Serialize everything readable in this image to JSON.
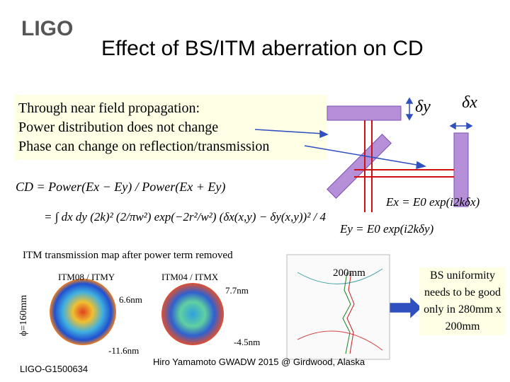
{
  "header": {
    "logo": "LIGO",
    "title": "Effect of BS/ITM aberration on CD"
  },
  "note": {
    "lines": [
      "Through near field propagation:",
      "Power distribution does not change",
      "Phase can change on reflection/transmission"
    ]
  },
  "diagram": {
    "delta_y": "δy",
    "delta_x": "δx",
    "ex": "Ex = E0 exp(i2kδx)",
    "ey": "Ey = E0 exp(i2kδy)"
  },
  "equation": {
    "line1": "CD = Power(Ex − Ey) / Power(Ex + Ey)",
    "line2": "= ∫ dx dy (2k)² (2/πw²) exp(−2r²/w²) (δx(x,y) − δy(x,y))² / 4"
  },
  "maps": {
    "heading": "ITM transmission map after power term removed",
    "diameter": "ϕ=160mm",
    "items": [
      {
        "label": "ITM08 / ITMY",
        "max": "6.6nm",
        "min": "-11.6nm"
      },
      {
        "label": "ITM04 / ITMX",
        "max": "7.7nm",
        "min": "-4.5nm"
      }
    ],
    "width": "200mm"
  },
  "callout": "BS uniformity needs to be good only in 280mm x 200mm",
  "footer": {
    "doc_id": "LIGO-G1500634",
    "credit": "Hiro Yamamoto GWADW 2015 @ Girdwood, Alaska"
  }
}
